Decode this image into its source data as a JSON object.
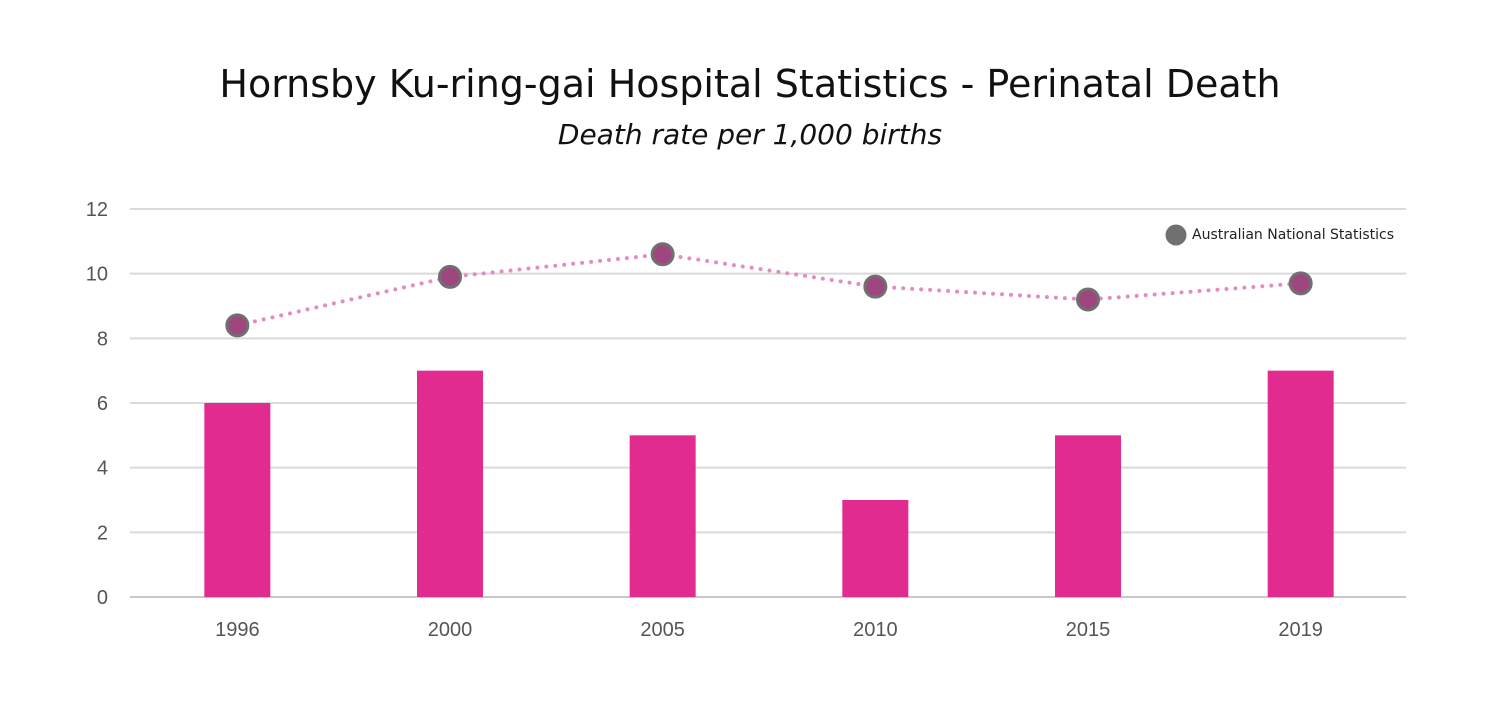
{
  "chart_data": {
    "type": "bar+line",
    "title": "Hornsby Ku-ring-gai Hospital  Statistics - Perinatal Death",
    "subtitle": "Death rate per 1,000 births",
    "categories": [
      "1996",
      "2000",
      "2005",
      "2010",
      "2015",
      "2019"
    ],
    "series": [
      {
        "type": "bar",
        "values": [
          6,
          7,
          5,
          3,
          5,
          7
        ],
        "color": "#e22b8f"
      },
      {
        "type": "line",
        "name": "Australian National Statistics",
        "values": [
          8.4,
          9.9,
          10.6,
          9.6,
          9.2,
          9.7
        ],
        "color": "#e38cc0",
        "marker_fill": "#a0467f",
        "marker_stroke": "#707070",
        "line_style": "dotted"
      }
    ],
    "ylim": [
      0,
      12
    ],
    "yticks": [
      0,
      2,
      4,
      6,
      8,
      10,
      12
    ],
    "grid": true,
    "legend_position": "top-right",
    "legend_marker_color": "#707070"
  }
}
